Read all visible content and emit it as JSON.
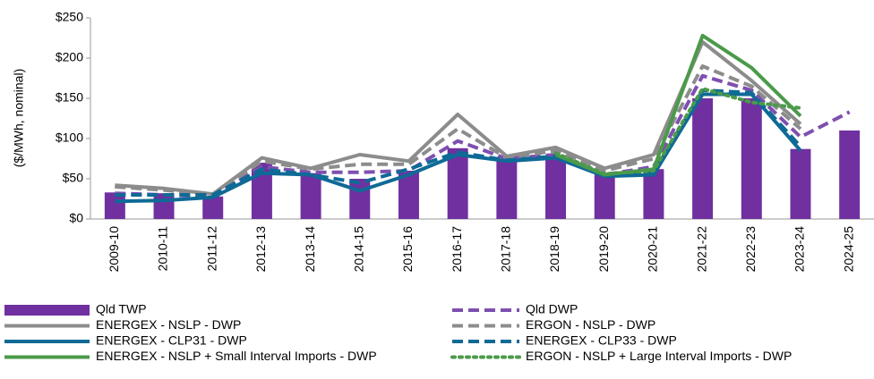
{
  "chart_data": {
    "type": "bar",
    "y_label": "($/MWh, nominal)",
    "categories": [
      "2009-10",
      "2010-11",
      "2011-12",
      "2012-13",
      "2013-14",
      "2014-15",
      "2015-16",
      "2016-17",
      "2017-18",
      "2018-19",
      "2019-20",
      "2020-21",
      "2021-22",
      "2022-23",
      "2023-24",
      "2024-25"
    ],
    "ylim": [
      0,
      250
    ],
    "yticks": [
      {
        "value": 0,
        "label": "$0"
      },
      {
        "value": 50,
        "label": "$50"
      },
      {
        "value": 100,
        "label": "$100"
      },
      {
        "value": 150,
        "label": "$150"
      },
      {
        "value": 200,
        "label": "$200"
      },
      {
        "value": 250,
        "label": "$250"
      }
    ],
    "series": [
      {
        "name": "Qld TWP",
        "type": "bar",
        "color": "#7030a0",
        "values": [
          33,
          32,
          28,
          70,
          57,
          50,
          60,
          88,
          73,
          78,
          55,
          62,
          150,
          150,
          87,
          110
        ]
      },
      {
        "name": "Qld DWP",
        "type": "line",
        "dash": "dashed",
        "color": "#7f4fb0",
        "values": [
          32,
          30,
          28,
          65,
          58,
          58,
          60,
          97,
          75,
          80,
          55,
          65,
          178,
          160,
          102,
          133
        ]
      },
      {
        "name": "ENERGEX - NSLP - DWP",
        "type": "line",
        "dash": "solid",
        "color": "#8c8c8c",
        "values": [
          42,
          38,
          31,
          76,
          63,
          80,
          72,
          130,
          78,
          89,
          63,
          80,
          220,
          172,
          118,
          null
        ]
      },
      {
        "name": "ERGON - NSLP - DWP",
        "type": "line",
        "dash": "dashed",
        "color": "#8c8c8c",
        "values": [
          40,
          36,
          30,
          72,
          62,
          68,
          68,
          112,
          76,
          85,
          60,
          75,
          190,
          165,
          112,
          null
        ]
      },
      {
        "name": "ENERGEX - CLP31 - DWP",
        "type": "line",
        "dash": "solid",
        "color": "#0f6a96",
        "values": [
          22,
          23,
          27,
          57,
          55,
          35,
          55,
          80,
          72,
          76,
          53,
          55,
          155,
          155,
          85,
          null
        ]
      },
      {
        "name": "ENERGEX - CLP33 - DWP",
        "type": "line",
        "dash": "dashed",
        "color": "#0f6a96",
        "values": [
          30,
          30,
          30,
          62,
          55,
          45,
          62,
          83,
          73,
          78,
          55,
          58,
          160,
          157,
          90,
          null
        ]
      },
      {
        "name": "ENERGEX - NSLP + Small Interval Imports - DWP",
        "type": "line",
        "dash": "solid",
        "color": "#4a9a4a",
        "values": [
          null,
          null,
          null,
          null,
          null,
          null,
          null,
          null,
          null,
          80,
          55,
          62,
          228,
          188,
          128,
          null
        ]
      },
      {
        "name": "ERGON - NSLP + Large Interval Imports - DWP",
        "type": "line",
        "dash": "dotted",
        "color": "#4a9a4a",
        "values": [
          null,
          null,
          null,
          null,
          null,
          null,
          null,
          null,
          null,
          82,
          56,
          60,
          162,
          145,
          138,
          null
        ]
      }
    ]
  }
}
